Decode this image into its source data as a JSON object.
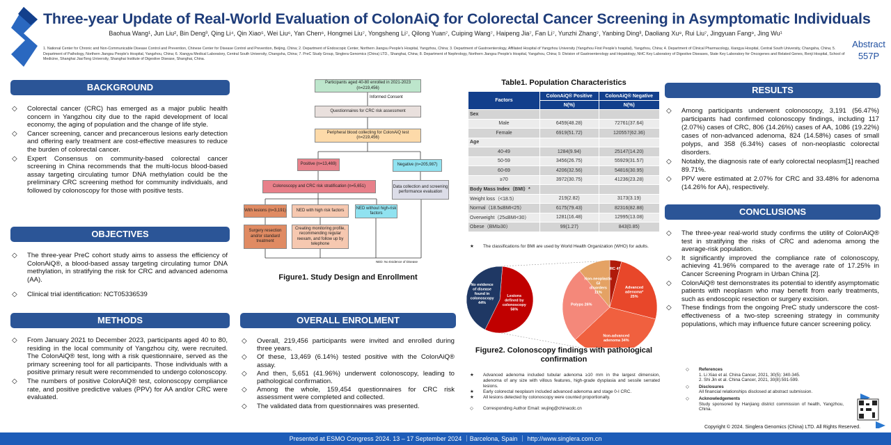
{
  "header": {
    "title": "Three-year Update of Real-World Evaluation of ColonAiQ for Colorectal Cancer Screening in Asymptomatic Individuals",
    "authors": "Baohua Wang¹, Jun Liu², Bin Deng³, Qing Li⁴, Qin Xiao⁵, Wei Liu⁶, Yan Chen⁶, Hongmei Liu⁷, Yongsheng Li⁷, Qilong Yuan⁷, Cuiping Wang⁷, Haipeng Jia⁷, Fan Li⁷, Yunzhi Zhang⁷, Yanbing Ding³, Daoliang Xu⁸, Rui Liu⁷, Jingyuan Fang⁹, Jing Wu¹",
    "affiliations": "1. National Center for Chronic and Non-Communicable Disease Control and Prevention, Chinese Center for Disease Control and Prevention, Beijing, China; 2. Department of Endoscopic Center, Northern Jiangsu People's Hospital, Yangzhou, China; 3. Department of Gastroenterology, Affiliated Hospital of Yangzhou University (Yangzhou First People's hospital), Yangzhou, China; 4. Department of Clinical Pharmacology, Xiangya Hospital, Central South University, Changsha, China; 5. Department of Pathology, Northern Jiangsu People's Hospital, Yangzhou, China; 6. Xiangya Medical Laboratory, Central South University, Changsha, China; 7. PreC Study Group, Singlera Genomics (China) LTD., Shanghai, China; 8. Department of Nephrology, Northern Jiangsu People's Hospital, Yangzhou, China; 9. Division of Gastroenterology and Hepatology, NHC Key Laboratory of Digestive Diseases, State Key Laboratory for Oncogenes and Related Genes, Renji Hospital, School of Medicine, Shanghai JiaoTong University, Shanghai Institute of Digestive Disease, Shanghai, China.",
    "abstract_label": "Abstract",
    "abstract_no": "557P"
  },
  "background": {
    "title": "BACKGROUND",
    "items": [
      "Colorectal cancer (CRC) has emerged as a major public health concern in Yangzhou city due to the rapid development of local economy, the aging of population and the change of life style.",
      "Cancer screening, cancer and precancerous lesions early detection and offering early treatment are cost-effective measures to reduce the burden of colorectal cancer.",
      "Expert Consensus on community-based colorectal cancer screening in China recommends that the multi-locus blood-based assay targeting circulating tumor DNA methylation could be the preliminary CRC screening method for community individuals, and followed by colonoscopy for those with positive tests."
    ]
  },
  "objectives": {
    "title": "OBJECTIVES",
    "items": [
      "The three-year PreC cohort study aims to assess the efficiency of ColonAiQ®, a blood-based assay targeting circulating tumor DNA methylation, in stratifying the risk for CRC and advanced adenoma (AA).",
      "Clinical trial identification: NCT05336539"
    ]
  },
  "methods": {
    "title": "METHODS",
    "items": [
      "From January 2021 to December 2023, participants aged 40 to 80, residing in the local community of Yangzhou city, were recruited. The ColonAiQ® test, long with a risk questionnaire, served as the primary screening tool for all participants. Those individuals with a positive primary result were recommended to undergo colonoscopy.",
      "The numbers of positive ColonAiQ® test, colonoscopy compliance rate, and positive predictive values (PPV) for AA and/or CRC were evaluated."
    ]
  },
  "figure1": {
    "caption": "Figure1. Study Design and Enrollment",
    "participants": "Participants aged 40-80 enrolled in 2021-2023 (n=219,456)",
    "consent": "Informed Consent",
    "questionnaires": "Questionnaires for CRC risk assessment",
    "blood": "Peripheral blood collecting for ColonAiQ test (n=219,456)",
    "positive": "Positive (n=13,469)",
    "negative": "Negative (n=205,987)",
    "colonoscopy": "Colonoscopy and CRC risk stratification (n=5,651)",
    "data_collection": "Data collection and screening performance evaluation",
    "lesions": "With lesions (n=3,191)",
    "ned_high": "NED with high risk factors",
    "ned_without": "NED without high-risk factors",
    "surgery": "Surgery resection and/or standard treatment",
    "monitoring": "Creating monitoring profile, recommending regular reexam, and follow up by telephone",
    "ned_note": "NED: No Evidence of Disease"
  },
  "enrolment": {
    "title": "OVERALL ENROLMENT",
    "items": [
      "Overall, 219,456 participants were invited and enrolled during three years.",
      "Of these, 13,469 (6.14%) tested positive with the ColonAiQ® assay.",
      "And then, 5,651 (41.96%) underwent colonoscopy, leading to pathological confirmation.",
      "Among the whole, 159,454 questionnaires for CRC risk assessment were completed and collected.",
      "The validated data from questionnaires was presented."
    ]
  },
  "table1": {
    "title": "Table1. Population Characteristics",
    "headers": {
      "factors": "Factors",
      "pos": "ColonAiQ® Positive",
      "neg": "ColonAiQ® Negative",
      "unit": "N(%)"
    },
    "rows": [
      {
        "group": "Sex"
      },
      {
        "label": "Male",
        "pos": "6459(48.28)",
        "neg": "72761(37.64)"
      },
      {
        "label": "Female",
        "pos": "6919(51.72)",
        "neg": "120557(62.36)"
      },
      {
        "group": "Age"
      },
      {
        "label": "40-49",
        "pos": "1284(9.94)",
        "neg": "25147(14.20)"
      },
      {
        "label": "50-59",
        "pos": "3456(26.75)",
        "neg": "55929(31.57)"
      },
      {
        "label": "60-69",
        "pos": "4206(32.56)",
        "neg": "54816(30.95)"
      },
      {
        "label": "≥70",
        "pos": "3972(30.75)",
        "neg": "41236(23.28)"
      },
      {
        "group": "Body Mass Index（BMI）*"
      },
      {
        "label": "Weight loss（<18.5）",
        "pos": "219(2.82)",
        "neg": "3173(3.19)"
      },
      {
        "label": "Normal（18.5≤BMI<25）",
        "pos": "6175(79.43)",
        "neg": "82316(82.88)"
      },
      {
        "label": "Overweight（25≤BMI<30）",
        "pos": "1281(16.48)",
        "neg": "12995(13.08)"
      },
      {
        "label": "Obese（BMI≥30）",
        "pos": "99(1.27)",
        "neg": "843(0.85)"
      }
    ],
    "note": "The classifications for BMI are used by World Health Organization (WHO) for adults."
  },
  "chart_data": [
    {
      "type": "pie",
      "slices": [
        {
          "label": "Lesions defined by colonoscopy",
          "value": 56,
          "color": "#c00000"
        },
        {
          "label": "No evidence of disease found in colonoscopy",
          "value": 44,
          "color": "#1f3864"
        }
      ]
    },
    {
      "type": "pie",
      "slices": [
        {
          "label": "CRC",
          "value": 4,
          "color": "#b01a0a"
        },
        {
          "label": "Advanced adenoma*",
          "value": 25,
          "color": "#e8472a"
        },
        {
          "label": "Non-advanced adenoma",
          "value": 34,
          "color": "#f0603f"
        },
        {
          "label": "Polyps",
          "value": 26,
          "color": "#f4887a"
        },
        {
          "label": "Non-neoplastic GI disorders",
          "value": 11,
          "color": "#e4a264"
        }
      ]
    }
  ],
  "figure2": {
    "caption": "Figure2. Colonoscopy findings with pathological confirmation",
    "notes": [
      "Advanced adenoma included tubular adenoma ≥10 mm in the largest dimension, adenoma of any size with villous features, high-grade dysplasia and sessile serrated lesions.",
      "Early colorectal neoplasm included advanced adenoma and stage 0-I CRC.",
      "All lesions detected by colonoscopy were counted proportionally."
    ],
    "email": "Corresponding Author Email: wujing@chinacdc.cn"
  },
  "results": {
    "title": "RESULTS",
    "items": [
      "Among participants underwent colonoscopy, 3,191 (56.47%) participants had confirmed colonoscopy findings, including 117 (2.07%) cases of CRC, 806 (14.26%) cases of AA, 1086 (19.22%) cases of non-advanced adenoma, 824 (14.58%) cases of small polyps, and 358 (6.34%) cases of non-neoplastic colorectal disorders.",
      "Notably, the diagnosis rate of early colorectal neoplasm[1] reached 89.71%.",
      "PPV were estimated at 2.07% for CRC and 33.48% for adenoma (14.26% for AA), respectively."
    ]
  },
  "conclusions": {
    "title": "CONCLUSIONS",
    "items": [
      "The three-year real-world study confirms the utility of ColonAiQ® test in stratifying the risks of CRC and adenoma among the average-risk population.",
      "It significantly improved the compliance rate of colonoscopy, achieving 41.96% compared to the average rate of 17.25% in Cancer Screening Program in Urban China [2].",
      "ColonAiQ® test demonstrates its potential to identify asymptomatic patients with neoplasm who may benefit from early treatments, such as endoscopic resection or surgery excision.",
      "These findings from the ongoing PreC study underscore the cost-effectiveness of a two-step screening strategy in community populations, which may influence future cancer screening policy."
    ]
  },
  "refs": {
    "ref_title": "References",
    "ref1": "1. Li Xiao et al. China Cancer, 2021, 30(5): 340-345.",
    "ref2": "2. Shi Jin et al. China Cancer, 2021, 30(8):591-599.",
    "disc_title": "Disclosures",
    "disc": "All financial relationships disclosed at abstract submission.",
    "ack_title": "Acknowledgements",
    "ack": "Study sponsored by Hanjiang district commission of health, Yangzhou, China.",
    "copyright": "Copyright © 2024. Singlera Genomics (China) LTD. All Rights Reserved."
  },
  "footer": "Presented at ESMO Congress 2024. 13 – 17 September 2024 ｜Barcelona, Spain ｜ http://www.singlera.com.cn"
}
